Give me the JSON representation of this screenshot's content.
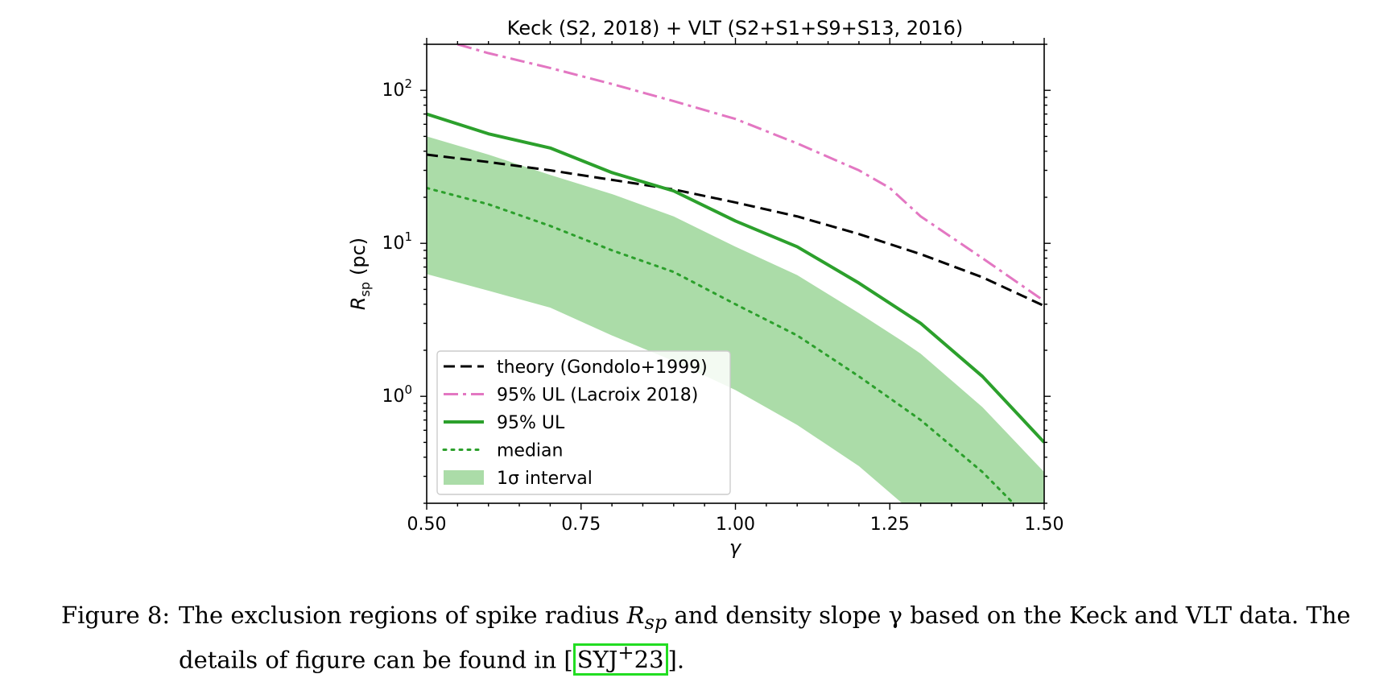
{
  "chart_data": {
    "type": "line",
    "title": "Keck (S2, 2018) + VLT (S2+S1+S9+S13, 2016)",
    "xlabel": "γ",
    "ylabel": "R",
    "ylabel_sub": "sp",
    "ylabel_unit": "(pc)",
    "xlim": [
      0.5,
      1.5
    ],
    "ylim": [
      0.2,
      200
    ],
    "yscale": "log",
    "xticks": [
      "0.50",
      "0.75",
      "1.00",
      "1.25",
      "1.50"
    ],
    "xtick_values": [
      0.5,
      0.75,
      1.0,
      1.25,
      1.5
    ],
    "yticks": [
      {
        "base": "10",
        "exp": "0",
        "value": 1
      },
      {
        "base": "10",
        "exp": "1",
        "value": 10
      },
      {
        "base": "10",
        "exp": "2",
        "value": 100
      }
    ],
    "grid": false,
    "legend_position": "lower-left",
    "series": [
      {
        "name": "theory (Gondolo+1999)",
        "style": "dashed",
        "color": "#000000",
        "x": [
          0.5,
          0.6,
          0.7,
          0.8,
          0.9,
          1.0,
          1.1,
          1.2,
          1.3,
          1.4,
          1.5
        ],
        "y": [
          38,
          34,
          30,
          26,
          22.5,
          18.5,
          15,
          11.5,
          8.5,
          6,
          3.9
        ]
      },
      {
        "name": "95% UL (Lacroix 2018)",
        "style": "dashdot",
        "color": "#e377c2",
        "x": [
          0.55,
          0.6,
          0.7,
          0.8,
          0.9,
          1.0,
          1.1,
          1.2,
          1.25,
          1.3,
          1.4,
          1.5
        ],
        "y": [
          200,
          175,
          140,
          110,
          85,
          65,
          45,
          30,
          23,
          15,
          8,
          4.2
        ]
      },
      {
        "name": "95% UL",
        "style": "solid",
        "color": "#2ca02c",
        "x": [
          0.5,
          0.6,
          0.7,
          0.8,
          0.9,
          1.0,
          1.1,
          1.2,
          1.3,
          1.4,
          1.5
        ],
        "y": [
          70,
          52,
          42,
          29,
          22,
          14,
          9.5,
          5.5,
          3.0,
          1.35,
          0.5
        ]
      },
      {
        "name": "median",
        "style": "dotted",
        "color": "#2ca02c",
        "x": [
          0.5,
          0.6,
          0.7,
          0.8,
          0.9,
          1.0,
          1.1,
          1.2,
          1.3,
          1.4,
          1.45
        ],
        "y": [
          23,
          18,
          13,
          9.0,
          6.5,
          4.0,
          2.5,
          1.35,
          0.7,
          0.32,
          0.2
        ]
      }
    ],
    "band": {
      "name": "1σ interval",
      "color": "#abdca8",
      "x": [
        0.5,
        0.6,
        0.7,
        0.8,
        0.9,
        1.0,
        1.1,
        1.2,
        1.27,
        1.3,
        1.4,
        1.5
      ],
      "upper": [
        50,
        38,
        28,
        21,
        15,
        9.5,
        6.2,
        3.5,
        2.3,
        1.9,
        0.85,
        0.32
      ],
      "lower": [
        6.3,
        4.9,
        3.8,
        2.5,
        1.7,
        1.1,
        0.65,
        0.35,
        0.2,
        0.2,
        0.2,
        0.2
      ]
    }
  },
  "caption": {
    "label": "Figure 8:",
    "line1_a": "The exclusion regions of spike radius ",
    "r_symbol": "R",
    "r_sub": "sp",
    "line1_b": " and density slope γ based on the Keck and VLT data. The",
    "line2_a": "details of figure can be found in [",
    "cite_base": "SYJ",
    "cite_sup": "+",
    "cite_tail": "23",
    "line2_b": "]."
  }
}
